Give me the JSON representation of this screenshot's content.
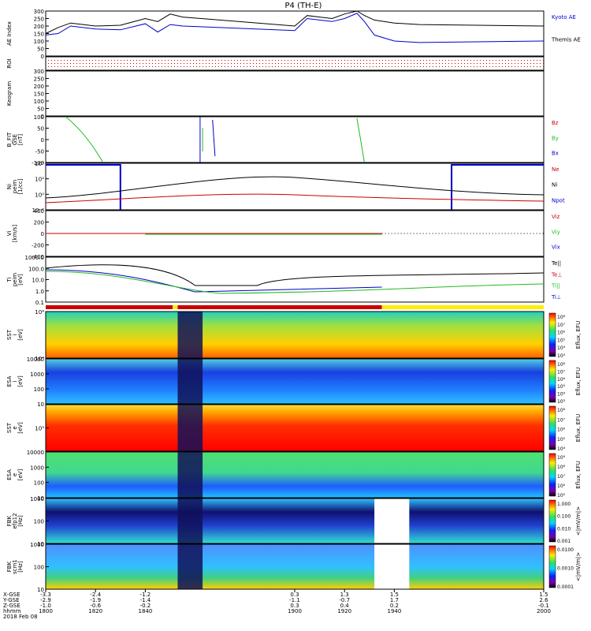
{
  "title": "P4 (TH-E)",
  "panels": [
    {
      "id": "ae",
      "ylabel": "AE Index",
      "ticks": [
        "300",
        "250",
        "200",
        "150",
        "100",
        "50",
        "0"
      ],
      "legend": [
        {
          "text": "Kyoto AE",
          "color": "#0000cc"
        },
        {
          "text": "Themis AE",
          "color": "#000000"
        }
      ]
    },
    {
      "id": "roi",
      "ylabel": "ROI",
      "ticks": [],
      "legend": []
    },
    {
      "id": "keo",
      "ylabel": "Keogram",
      "ticks": [
        "300",
        "250",
        "200",
        "150",
        "100",
        "50",
        "0"
      ],
      "legend": []
    },
    {
      "id": "bfit",
      "ylabel": "B_FIT\nGSE\n[nT]",
      "ticks": [
        "100",
        "50",
        "0",
        "-50",
        "-100"
      ],
      "legend": [
        {
          "text": "Bz",
          "color": "#cc0000"
        },
        {
          "text": "By",
          "color": "#22bb22"
        },
        {
          "text": "Bx",
          "color": "#0000cc"
        }
      ]
    },
    {
      "id": "ni",
      "ylabel": "Ni\npeim\n[1/cc]",
      "ticks": [
        "10⁴",
        "10²",
        "10⁰",
        "10⁻²"
      ],
      "legend": [
        {
          "text": "Ne",
          "color": "#cc0000"
        },
        {
          "text": "Ni",
          "color": "#000000"
        },
        {
          "text": "Npot",
          "color": "#0000cc"
        }
      ]
    },
    {
      "id": "vi",
      "ylabel": "Vi\n[km/s]",
      "ticks": [
        "400",
        "200",
        "0",
        "-200",
        "-400"
      ],
      "legend": [
        {
          "text": "Viz",
          "color": "#cc0000"
        },
        {
          "text": "Viy",
          "color": "#22bb22"
        },
        {
          "text": "Vix",
          "color": "#0000cc"
        }
      ]
    },
    {
      "id": "ti",
      "ylabel": "Ti\npeim\n[eV]",
      "ticks": [
        "1000.0",
        "100.0",
        "10.0",
        "1.0",
        "0.1"
      ],
      "legend": [
        {
          "text": "Te||",
          "color": "#000000"
        },
        {
          "text": "Te⊥",
          "color": "#cc0000"
        },
        {
          "text": "Ti||",
          "color": "#22bb22"
        },
        {
          "text": "Ti⊥",
          "color": "#0000cc"
        }
      ]
    },
    {
      "id": "sst_i",
      "ylabel": "SST\ni\n[eV]",
      "ticks": [
        "10⁴",
        "10⁴"
      ],
      "cbar": {
        "ticks": [
          "10⁸",
          "10⁷",
          "10⁶",
          "10⁵",
          "10⁴",
          "10³"
        ],
        "label": "Eflux, EFU"
      }
    },
    {
      "id": "esa_i",
      "ylabel": "ESA\ni\n[eV]",
      "ticks": [
        "10000",
        "1000",
        "100",
        "10"
      ],
      "cbar": {
        "ticks": [
          "10⁸",
          "10⁷",
          "10⁶",
          "10⁵",
          "10⁴",
          "10³"
        ],
        "label": "Eflux, EFU"
      }
    },
    {
      "id": "sst_e",
      "ylabel": "SST\ne\n[eV]",
      "ticks": [
        "10⁵"
      ],
      "cbar": {
        "ticks": [
          "10⁸",
          "10⁷",
          "10⁶",
          "10⁵",
          "10⁴"
        ],
        "label": "Eflux, EFU"
      }
    },
    {
      "id": "esa_e",
      "ylabel": "ESA\ne\n[eV]",
      "ticks": [
        "10000",
        "1000",
        "100",
        "10"
      ],
      "cbar": {
        "ticks": [
          "10⁹",
          "10⁸",
          "10⁷",
          "10⁶",
          "10⁵"
        ],
        "label": "Eflux, EFU"
      }
    },
    {
      "id": "fbk_e",
      "ylabel": "FBK\nefp12\n[Hz]",
      "ticks": [
        "1000",
        "100",
        "10"
      ],
      "cbar": {
        "ticks": [
          "1.000",
          "0.100",
          "0.010",
          "0.001"
        ],
        "label": "<|mV/m|>"
      }
    },
    {
      "id": "fbk_b",
      "ylabel": "FBK\nscm1\n[Hz]",
      "ticks": [
        "1000",
        "100",
        "10"
      ],
      "cbar": {
        "ticks": [
          "0.0100",
          "0.0010",
          "0.0001"
        ],
        "label": "<|mV/m|>"
      }
    }
  ],
  "xaxis": {
    "row_labels": [
      "X-GSE",
      "Y-GSE",
      "Z-GSE",
      "hhmm",
      "2018 Feb 08"
    ],
    "cols": [
      {
        "pos": "-3.3",
        "vals": [
          "-3.3",
          "-2.9",
          "-1.0",
          "1800"
        ]
      },
      {
        "pos": "1820",
        "vals": [
          "-2.4",
          "-1.9",
          "-0.6",
          "1820"
        ]
      },
      {
        "pos": "1840",
        "vals": [
          "-1.2",
          "-1.4",
          "-0.2",
          "1840"
        ]
      },
      {
        "pos": "1900",
        "vals": [
          "0.3",
          "-1.1",
          "0.3",
          "1900"
        ]
      },
      {
        "pos": "1920",
        "vals": [
          "1.3",
          "-0.7",
          "0.4",
          "1920"
        ]
      },
      {
        "pos": "1940",
        "vals": [
          "1.5",
          "1.7",
          "0.2",
          "1940"
        ]
      },
      {
        "pos": "2000",
        "vals": [
          "1.5",
          "2.6",
          "-0.1",
          "2000"
        ]
      }
    ]
  },
  "chart_data": {
    "type": "multi-panel time series with spectrograms",
    "title": "P4 (TH-E)",
    "xlabel": "hhmm",
    "x_ticks": [
      "1800",
      "1820",
      "1840",
      "1900",
      "1920",
      "1940",
      "2000"
    ],
    "series": [
      {
        "name": "Kyoto AE",
        "panel": "AE Index",
        "x": [
          1800,
          1805,
          1810,
          1820,
          1830,
          1840,
          1845,
          1850,
          1855,
          1900,
          1905,
          1910,
          1915,
          1920,
          1925,
          1928,
          1932,
          1940,
          1950,
          2000
        ],
        "values": [
          140,
          150,
          200,
          180,
          175,
          215,
          160,
          210,
          200,
          170,
          250,
          240,
          230,
          250,
          285,
          230,
          140,
          100,
          90,
          100
        ]
      },
      {
        "name": "Themis AE",
        "panel": "AE Index",
        "x": [
          1800,
          1805,
          1810,
          1820,
          1830,
          1840,
          1845,
          1850,
          1855,
          1900,
          1905,
          1910,
          1915,
          1920,
          1925,
          1928,
          1932,
          1940,
          1950,
          2000
        ],
        "values": [
          150,
          190,
          220,
          200,
          205,
          250,
          230,
          280,
          260,
          200,
          270,
          260,
          250,
          280,
          300,
          270,
          240,
          220,
          210,
          200
        ]
      }
    ]
  }
}
